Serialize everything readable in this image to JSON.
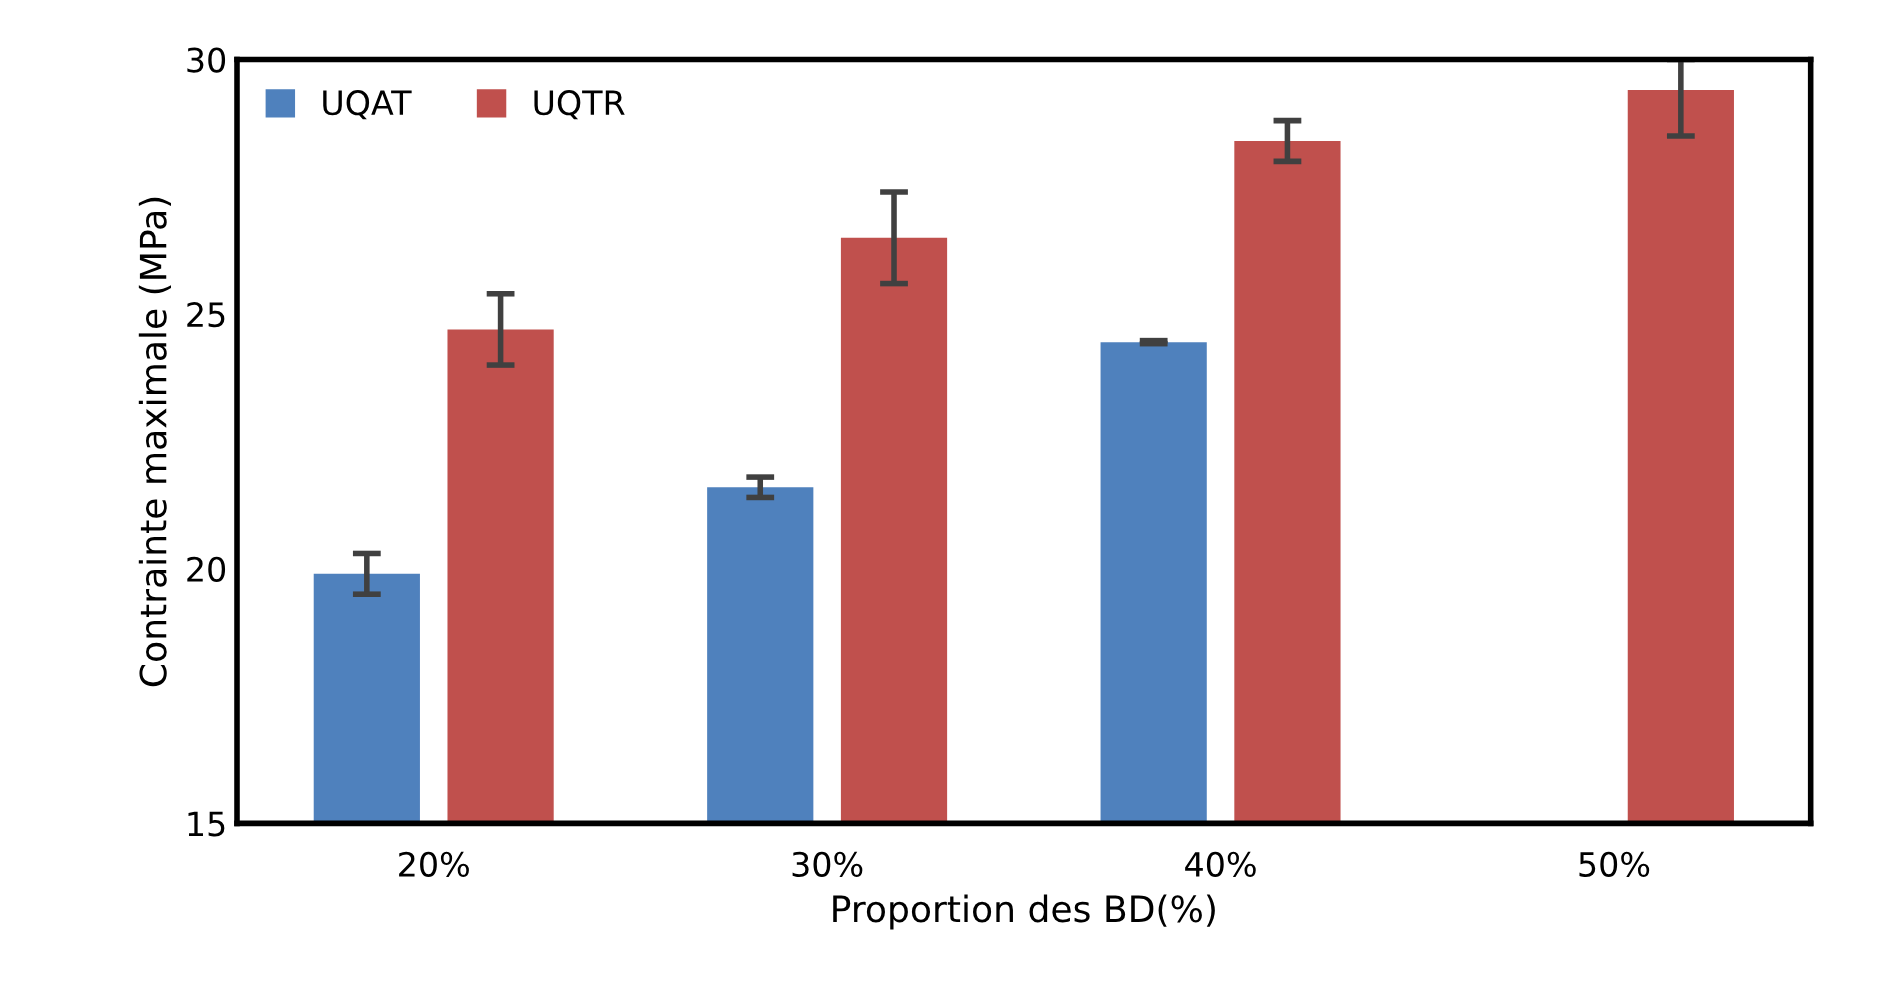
{
  "chart_data": {
    "type": "bar",
    "xlabel": "Proportion des BD(%)",
    "ylabel": "Contrainte maximale (MPa)",
    "categories": [
      "20%",
      "30%",
      "40%",
      "50%"
    ],
    "series": [
      {
        "name": "UQAT",
        "color": "#4f81bd",
        "values": [
          19.9,
          21.6,
          24.45,
          null
        ],
        "errors": [
          0.4,
          0.2,
          0.03,
          null
        ]
      },
      {
        "name": "UQTR",
        "color": "#c0504d",
        "values": [
          24.7,
          26.5,
          28.4,
          29.4
        ],
        "errors": [
          0.7,
          0.9,
          0.4,
          [
            28.5,
            30
          ]
        ]
      }
    ],
    "ylim": [
      15,
      30
    ],
    "yticks": [
      15,
      20,
      25,
      30
    ],
    "grid": false,
    "legend": "top left"
  }
}
